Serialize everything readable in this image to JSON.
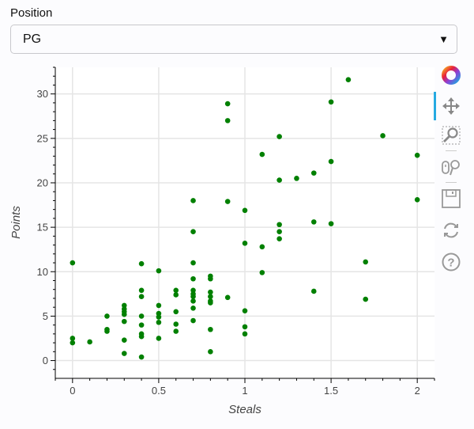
{
  "widget": {
    "label": "Position",
    "selected": "PG"
  },
  "toolbar": {
    "tools": [
      "bokeh-logo",
      "pan",
      "box-zoom",
      "wheel-zoom",
      "save",
      "reset",
      "help"
    ]
  },
  "chart_data": {
    "type": "scatter",
    "title": "",
    "xlabel": "Steals",
    "ylabel": "Points",
    "xlim": [
      -0.1,
      2.1
    ],
    "ylim": [
      -2,
      33
    ],
    "xticks": [
      0,
      0.5,
      1,
      1.5,
      2
    ],
    "xtick_labels": [
      "0",
      "0.5",
      "1",
      "1.5",
      "2"
    ],
    "yticks": [
      0,
      5,
      10,
      15,
      20,
      25,
      30
    ],
    "ytick_labels": [
      "0",
      "5",
      "10",
      "15",
      "20",
      "25",
      "30"
    ],
    "grid": true,
    "color": "#008000",
    "points": [
      [
        0,
        11
      ],
      [
        0,
        2.5
      ],
      [
        0,
        2.0
      ],
      [
        0.1,
        2.1
      ],
      [
        0.2,
        5.0
      ],
      [
        0.2,
        3.5
      ],
      [
        0.2,
        3.3
      ],
      [
        0.3,
        6.2
      ],
      [
        0.3,
        5.8
      ],
      [
        0.3,
        5.5
      ],
      [
        0.3,
        5.2
      ],
      [
        0.3,
        4.4
      ],
      [
        0.3,
        2.3
      ],
      [
        0.3,
        0.8
      ],
      [
        0.4,
        10.9
      ],
      [
        0.4,
        7.9
      ],
      [
        0.4,
        7.2
      ],
      [
        0.4,
        5.0
      ],
      [
        0.4,
        4.0
      ],
      [
        0.4,
        3.0
      ],
      [
        0.4,
        2.7
      ],
      [
        0.4,
        0.4
      ],
      [
        0.5,
        10.1
      ],
      [
        0.5,
        6.2
      ],
      [
        0.5,
        5.3
      ],
      [
        0.5,
        4.9
      ],
      [
        0.5,
        4.3
      ],
      [
        0.5,
        2.5
      ],
      [
        0.6,
        7.9
      ],
      [
        0.6,
        7.4
      ],
      [
        0.6,
        5.5
      ],
      [
        0.6,
        4.1
      ],
      [
        0.6,
        3.3
      ],
      [
        0.7,
        18.0
      ],
      [
        0.7,
        14.5
      ],
      [
        0.7,
        11.0
      ],
      [
        0.7,
        9.2
      ],
      [
        0.7,
        7.9
      ],
      [
        0.7,
        7.5
      ],
      [
        0.7,
        7.2
      ],
      [
        0.7,
        6.7
      ],
      [
        0.7,
        5.9
      ],
      [
        0.7,
        4.5
      ],
      [
        0.8,
        9.5
      ],
      [
        0.8,
        9.2
      ],
      [
        0.8,
        7.7
      ],
      [
        0.8,
        7.2
      ],
      [
        0.8,
        6.7
      ],
      [
        0.8,
        6.5
      ],
      [
        0.8,
        3.5
      ],
      [
        0.8,
        1.0
      ],
      [
        0.9,
        28.9
      ],
      [
        0.9,
        27.0
      ],
      [
        0.9,
        17.9
      ],
      [
        0.9,
        7.1
      ],
      [
        1.0,
        16.9
      ],
      [
        1.0,
        13.2
      ],
      [
        1.0,
        5.6
      ],
      [
        1.0,
        3.8
      ],
      [
        1.0,
        3.0
      ],
      [
        1.1,
        23.2
      ],
      [
        1.1,
        12.8
      ],
      [
        1.1,
        9.9
      ],
      [
        1.2,
        25.2
      ],
      [
        1.2,
        20.3
      ],
      [
        1.2,
        15.3
      ],
      [
        1.2,
        14.5
      ],
      [
        1.2,
        13.7
      ],
      [
        1.3,
        20.5
      ],
      [
        1.4,
        21.1
      ],
      [
        1.4,
        15.6
      ],
      [
        1.4,
        7.8
      ],
      [
        1.5,
        29.1
      ],
      [
        1.5,
        22.4
      ],
      [
        1.5,
        15.4
      ],
      [
        1.6,
        31.6
      ],
      [
        1.7,
        11.1
      ],
      [
        1.7,
        6.9
      ],
      [
        1.8,
        25.3
      ],
      [
        2.0,
        23.1
      ],
      [
        2.0,
        18.1
      ]
    ]
  }
}
